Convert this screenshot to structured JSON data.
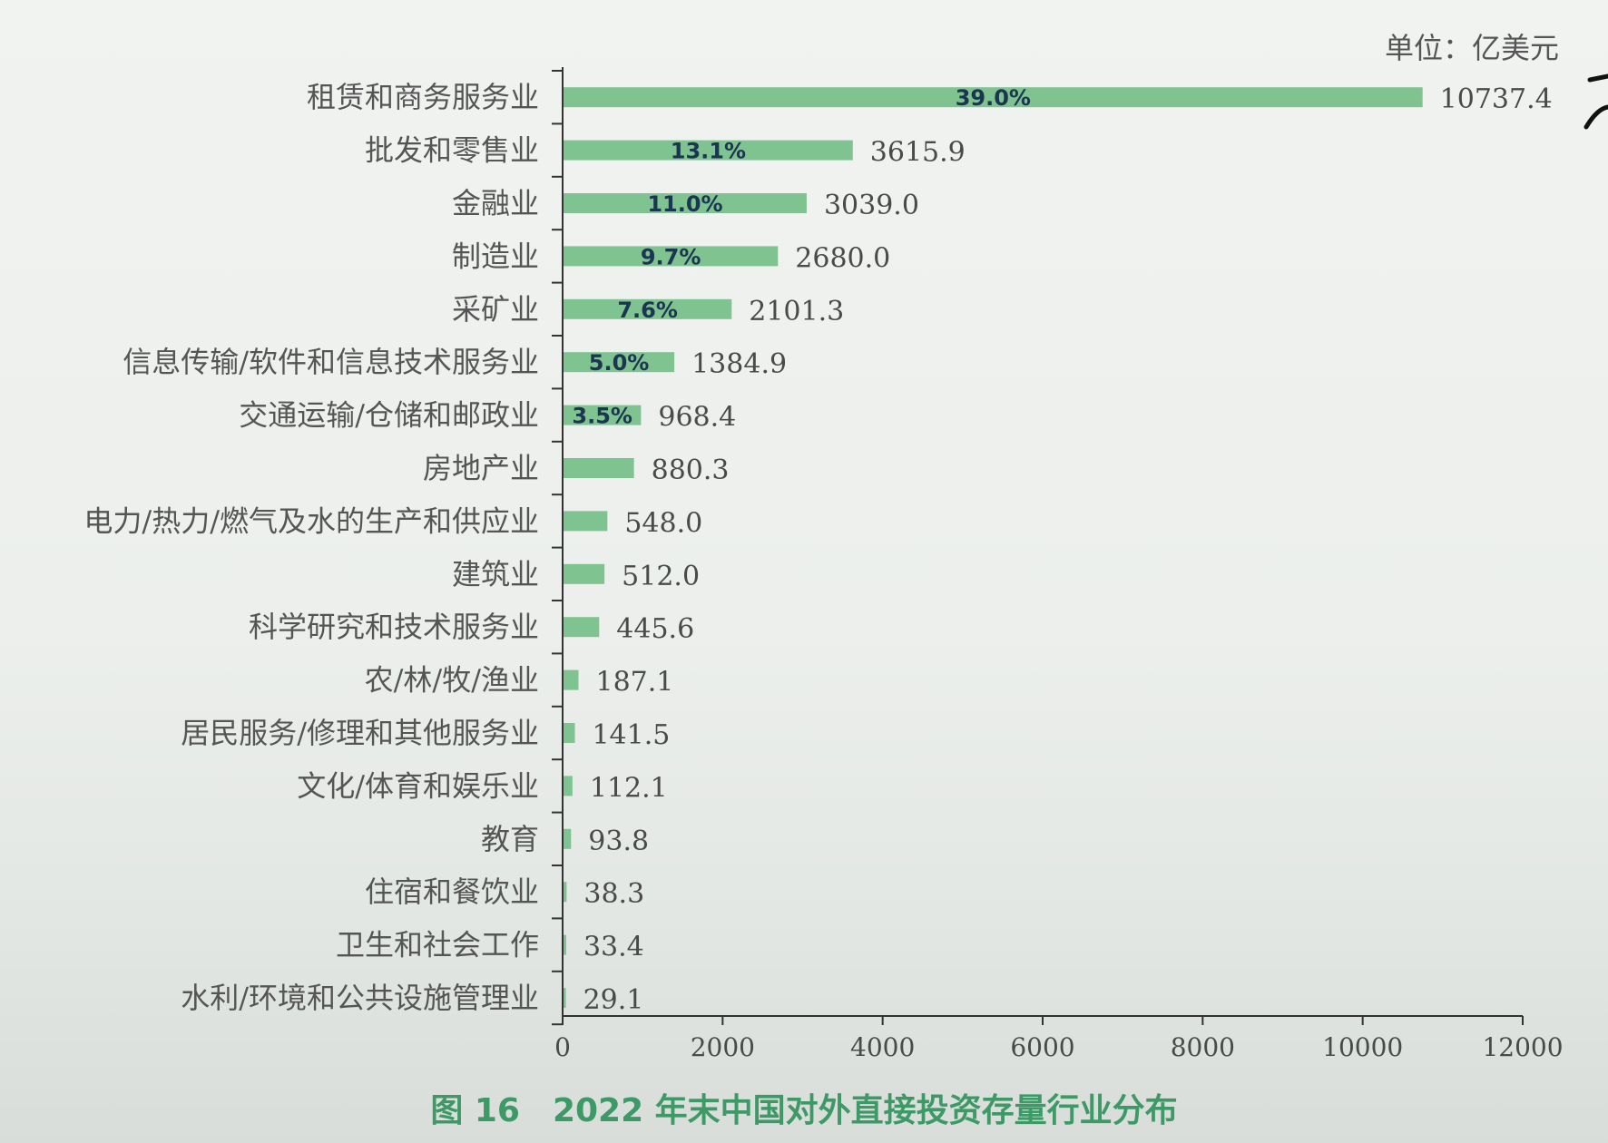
{
  "chart_data": {
    "type": "bar",
    "orientation": "horizontal",
    "title": "图 16　2022 年末中国对外直接投资存量行业分布",
    "unit": "单位：亿美元",
    "categories": [
      "租赁和商务服务业",
      "批发和零售业",
      "金融业",
      "制造业",
      "采矿业",
      "信息传输/软件和信息技术服务业",
      "交通运输/仓储和邮政业",
      "房地产业",
      "电力/热力/燃气及水的生产和供应业",
      "建筑业",
      "科学研究和技术服务业",
      "农/林/牧/渔业",
      "居民服务/修理和其他服务业",
      "文化/体育和娱乐业",
      "教育",
      "住宿和餐饮业",
      "卫生和社会工作",
      "水利/环境和公共设施管理业"
    ],
    "values": [
      10737.4,
      3615.9,
      3039.0,
      2680.0,
      2101.3,
      1384.9,
      968.4,
      880.3,
      548.0,
      512.0,
      445.6,
      187.1,
      141.5,
      112.1,
      93.8,
      38.3,
      33.4,
      29.1
    ],
    "value_labels": [
      "10737.4",
      "3615.9",
      "3039.0",
      "2680.0",
      "2101.3",
      "1384.9",
      "968.4",
      "880.3",
      "548.0",
      "512.0",
      "445.6",
      "187.1",
      "141.5",
      "112.1",
      "93.8",
      "38.3",
      "33.4",
      "29.1"
    ],
    "percent_labels": [
      "39.0%",
      "13.1%",
      "11.0%",
      "9.7%",
      "7.6%",
      "5.0%",
      "3.5%",
      "",
      "",
      "",
      "",
      "",
      "",
      "",
      "",
      "",
      "",
      ""
    ],
    "xlim": [
      0,
      12000
    ],
    "xticks": [
      0,
      2000,
      4000,
      6000,
      8000,
      10000,
      12000
    ],
    "xtick_labels": [
      "0",
      "2000",
      "4000",
      "6000",
      "8000",
      "10000",
      "12000"
    ],
    "bar_color": "#7fc391",
    "grid": false
  },
  "colors": {
    "caption": "#3d9a66",
    "percent_text": "#1c3550"
  }
}
